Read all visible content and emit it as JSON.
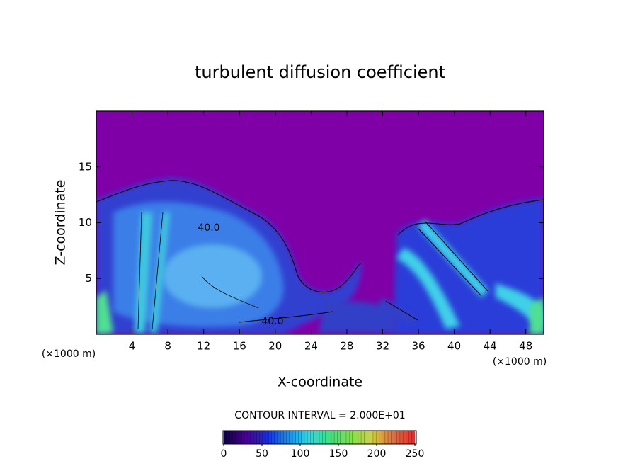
{
  "chart_data": {
    "type": "contour",
    "title": "turbulent diffusion coefficient",
    "x_label": "X-coordinate",
    "y_label": "Z-coordinate",
    "x_unit_labels": [
      "(×1000 m)",
      "(×1000 m)"
    ],
    "xlim": [
      0,
      50
    ],
    "xticks": [
      4,
      8,
      12,
      16,
      20,
      24,
      28,
      32,
      36,
      40,
      44,
      48
    ],
    "ylim": [
      0,
      20
    ],
    "yticks": [
      5,
      10,
      15
    ],
    "contour_labels": [
      "40.0",
      "40.0"
    ],
    "contour_interval_label": "CONTOUR INTERVAL = 2.000E+01",
    "colorbar": {
      "lim": [
        0,
        250
      ],
      "ticks": [
        0,
        50,
        100,
        150,
        200,
        250
      ],
      "colors": [
        "#10004a",
        "#4a0090",
        "#1a2cd8",
        "#1a8cf0",
        "#30d8e0",
        "#40e080",
        "#80e050",
        "#d0d040",
        "#e07040",
        "#e03030"
      ]
    }
  }
}
